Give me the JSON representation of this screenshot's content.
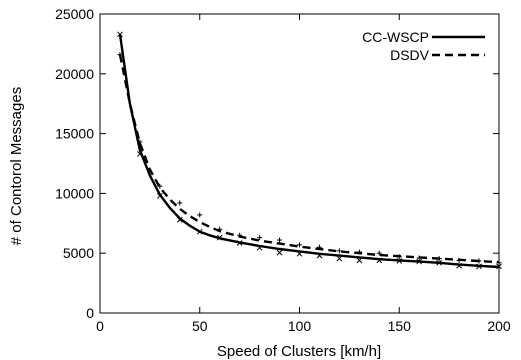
{
  "chart_data": {
    "type": "line",
    "title": "",
    "xlabel": "Speed of Clusters [km/h]",
    "ylabel": "# of Contorol Messages",
    "xlim": [
      0,
      200
    ],
    "ylim": [
      0,
      25000
    ],
    "xticks": [
      0,
      50,
      100,
      150,
      200
    ],
    "yticks": [
      0,
      5000,
      10000,
      15000,
      20000,
      25000
    ],
    "grid": false,
    "legend_position": "top-right",
    "series": [
      {
        "name": "CC-WSCP",
        "style": "solid",
        "marker": "x",
        "x": [
          10,
          15,
          20,
          25,
          30,
          35,
          40,
          45,
          50,
          55,
          60,
          70,
          80,
          90,
          100,
          110,
          120,
          130,
          140,
          150,
          160,
          170,
          180,
          190,
          200
        ],
        "y": [
          23300,
          17500,
          13600,
          11500,
          9900,
          8800,
          7900,
          7300,
          6800,
          6500,
          6250,
          5900,
          5600,
          5350,
          5150,
          4950,
          4800,
          4650,
          4500,
          4400,
          4300,
          4200,
          4050,
          3950,
          3850
        ],
        "marker_x": [
          10,
          20,
          30,
          40,
          50,
          60,
          70,
          80,
          90,
          100,
          110,
          120,
          130,
          140,
          150,
          160,
          170,
          180,
          190,
          200
        ],
        "marker_y": [
          23300,
          13300,
          9800,
          7800,
          6800,
          6300,
          5850,
          5450,
          5050,
          4950,
          4800,
          4550,
          4400,
          4400,
          4350,
          4300,
          4200,
          3950,
          3900,
          3900
        ]
      },
      {
        "name": "DSDV",
        "style": "dashed",
        "marker": "+",
        "x": [
          10,
          15,
          20,
          25,
          30,
          35,
          40,
          45,
          50,
          55,
          60,
          70,
          80,
          90,
          100,
          110,
          120,
          130,
          140,
          150,
          160,
          170,
          180,
          190,
          200
        ],
        "y": [
          21600,
          17500,
          14200,
          12000,
          10500,
          9500,
          8700,
          8100,
          7600,
          7200,
          6850,
          6400,
          6050,
          5800,
          5550,
          5350,
          5150,
          5000,
          4850,
          4750,
          4650,
          4550,
          4450,
          4350,
          4250
        ],
        "marker_x": [
          10,
          20,
          30,
          40,
          50,
          60,
          70,
          80,
          90,
          100,
          110,
          120,
          130,
          140,
          150,
          160,
          170,
          180,
          190,
          200
        ],
        "marker_y": [
          21600,
          14300,
          10600,
          9200,
          8200,
          7000,
          6500,
          6300,
          6100,
          5700,
          5500,
          5200,
          5100,
          5000,
          4700,
          4600,
          4550,
          4400,
          4350,
          4200
        ]
      }
    ]
  }
}
